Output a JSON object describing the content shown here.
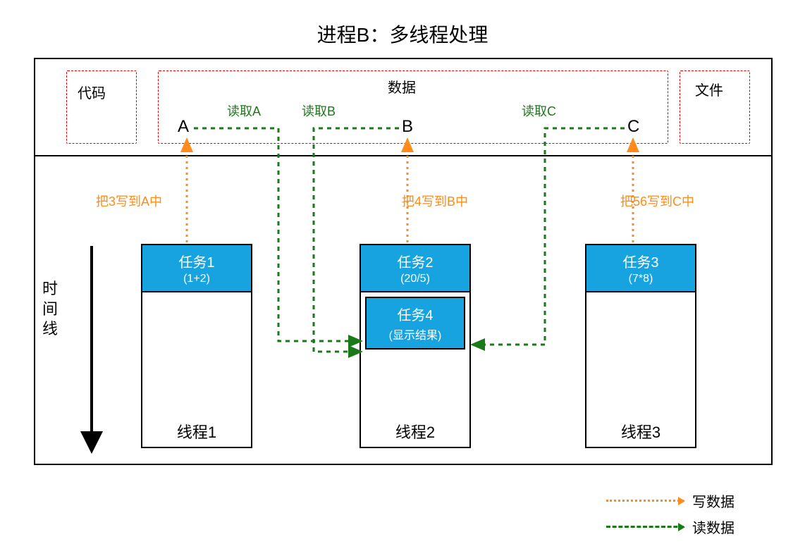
{
  "title": "进程B：多线程处理",
  "colors": {
    "task_bg": "#17a3e0",
    "write": "#ff8c1a",
    "read": "#1a7a1a",
    "red_border": "#e60000",
    "black": "#000000",
    "white": "#ffffff"
  },
  "top_boxes": {
    "code": "代码",
    "data": "数据",
    "file": "文件"
  },
  "data_items": {
    "a": "A",
    "b": "B",
    "c": "C"
  },
  "read_labels": {
    "a": "读取A",
    "b": "读取B",
    "c": "读取C"
  },
  "write_labels": {
    "a": "把3写到A中",
    "b": "把4写到B中",
    "c": "把56写到C中"
  },
  "threads": {
    "t1": {
      "label": "线程1",
      "tasks": [
        {
          "title": "任务1",
          "sub": "(1+2)"
        }
      ]
    },
    "t2": {
      "label": "线程2",
      "tasks": [
        {
          "title": "任务2",
          "sub": "(20/5)"
        },
        {
          "title": "任务4",
          "sub": "(显示结果)"
        }
      ]
    },
    "t3": {
      "label": "线程3",
      "tasks": [
        {
          "title": "任务3",
          "sub": "(7*8)"
        }
      ]
    }
  },
  "timeline": "时间线",
  "legend": {
    "write": "写数据",
    "read": "读数据"
  },
  "styles": {
    "dash_pattern": "6,6",
    "dot_pattern": "3,5",
    "arrow_stroke_width": 3,
    "title_fontsize": 28,
    "label_fontsize": 20
  }
}
